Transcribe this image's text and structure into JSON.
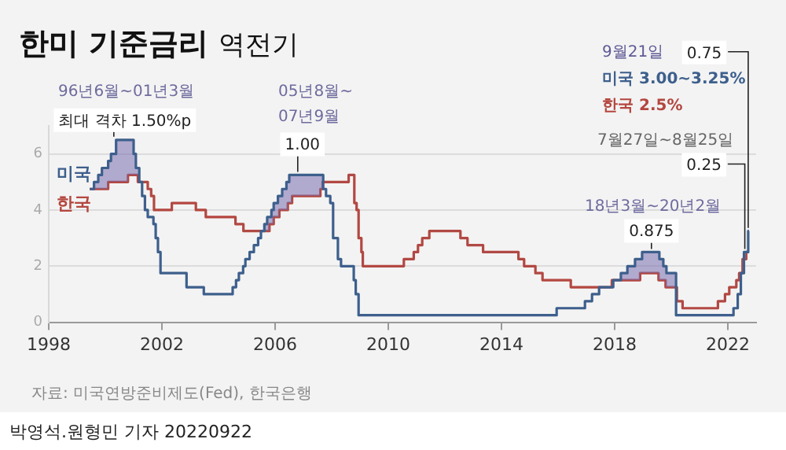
{
  "chart_data": {
    "type": "step",
    "title": "한미 기준금리 역전기",
    "series": [
      {
        "name": "미국",
        "color": "#3d5f8c",
        "x": [
          1999.45,
          1999.6,
          1999.75,
          1999.88,
          2000.1,
          2000.2,
          2000.38,
          2001.0,
          2001.08,
          2001.2,
          2001.3,
          2001.4,
          2001.5,
          2001.7,
          2001.78,
          2001.86,
          2001.95,
          2002.87,
          2003.48,
          2004.5,
          2004.62,
          2004.72,
          2004.87,
          2004.95,
          2005.1,
          2005.25,
          2005.4,
          2005.5,
          2005.62,
          2005.72,
          2005.87,
          2005.95,
          2006.1,
          2006.25,
          2006.4,
          2006.5,
          2007.7,
          2007.8,
          2007.95,
          2008.05,
          2008.22,
          2008.33,
          2008.78,
          2008.85,
          2008.95,
          2015.95,
          2016.95,
          2017.2,
          2017.45,
          2017.95,
          2018.22,
          2018.45,
          2018.72,
          2018.97,
          2019.58,
          2019.72,
          2019.83,
          2020.17,
          2022.2,
          2022.35,
          2022.46,
          2022.57,
          2022.72,
          2022.75
        ],
        "values": [
          4.75,
          5.0,
          5.25,
          5.5,
          5.75,
          6.0,
          6.5,
          6.0,
          5.5,
          5.0,
          4.5,
          4.0,
          3.75,
          3.5,
          3.0,
          2.5,
          1.75,
          1.25,
          1.0,
          1.25,
          1.5,
          1.75,
          2.0,
          2.25,
          2.5,
          2.75,
          3.0,
          3.25,
          3.5,
          3.75,
          4.0,
          4.25,
          4.5,
          4.75,
          5.0,
          5.25,
          4.75,
          4.5,
          4.25,
          3.0,
          2.25,
          2.0,
          1.5,
          1.0,
          0.25,
          0.5,
          0.75,
          1.0,
          1.25,
          1.5,
          1.75,
          2.0,
          2.25,
          2.5,
          2.25,
          2.0,
          1.75,
          0.25,
          0.5,
          1.0,
          1.75,
          2.5,
          3.25,
          3.25
        ]
      },
      {
        "name": "한국",
        "color": "#b4473f",
        "x": [
          1999.45,
          2000.1,
          2000.8,
          2001.15,
          2001.5,
          2001.62,
          2001.72,
          2002.35,
          2003.2,
          2003.55,
          2004.6,
          2004.88,
          2005.8,
          2005.95,
          2006.15,
          2006.45,
          2006.6,
          2007.6,
          2007.68,
          2008.6,
          2008.8,
          2008.88,
          2008.95,
          2009.05,
          2009.1,
          2010.55,
          2010.9,
          2011.05,
          2011.2,
          2011.45,
          2012.55,
          2012.8,
          2013.35,
          2014.6,
          2014.8,
          2015.2,
          2015.45,
          2016.45,
          2017.9,
          2018.9,
          2019.55,
          2019.8,
          2020.2,
          2020.4,
          2021.65,
          2021.9,
          2022.05,
          2022.3,
          2022.4,
          2022.52,
          2022.65,
          2022.75
        ],
        "values": [
          4.75,
          5.0,
          5.25,
          5.0,
          4.75,
          4.5,
          4.0,
          4.25,
          4.0,
          3.75,
          3.5,
          3.25,
          3.5,
          3.75,
          4.0,
          4.25,
          4.5,
          4.75,
          5.0,
          5.25,
          4.25,
          4.0,
          3.0,
          2.5,
          2.0,
          2.25,
          2.5,
          2.75,
          3.0,
          3.25,
          3.0,
          2.75,
          2.5,
          2.25,
          2.0,
          1.75,
          1.5,
          1.25,
          1.5,
          1.75,
          1.5,
          1.25,
          0.75,
          0.5,
          0.75,
          1.0,
          1.25,
          1.5,
          1.75,
          2.25,
          2.5,
          2.5
        ]
      }
    ],
    "xlim": [
      1998,
      2023
    ],
    "xticks": [
      1998,
      2002,
      2006,
      2010,
      2014,
      2018,
      {
        "value": 2022,
        "label": "2022"
      }
    ],
    "ylim": [
      0,
      7
    ],
    "yticks": [
      0,
      2,
      4,
      6
    ],
    "grid": "y",
    "legend": false,
    "annotations": [
      "96년6월~01년3월",
      {
        "text": "최대 격차 1.50%p",
        "x": 2000.3,
        "y": 6.5
      },
      "05년8월~",
      "07년9월",
      {
        "text": "1.00",
        "x": 2006.8,
        "y": 5.25
      },
      "18년3월~20년2월",
      {
        "text": "0.875",
        "x": 2019.3,
        "y": 2.5
      },
      "9월21일",
      {
        "text": "0.75",
        "x": 2022.72,
        "y": 3.25
      },
      "미국 3.00~3.25%",
      "한국 2.5%",
      "7월27일~8월25일",
      {
        "text": "0.25",
        "x": 2022.6,
        "y": 2.5
      },
      "자료: 미국연방준비제도(Fed), 한국은행",
      "박영석.원형민 기자 20220922"
    ]
  }
}
